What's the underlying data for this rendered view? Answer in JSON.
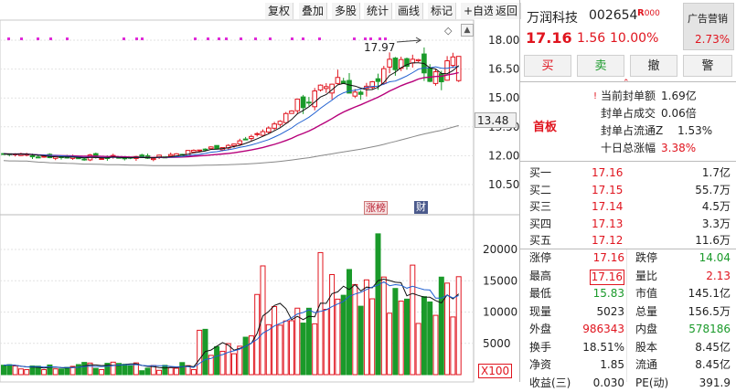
{
  "toolbar": [
    "复权",
    "叠加",
    "多股",
    "统计",
    "画线",
    "标记",
    "+自选",
    "返回"
  ],
  "stock": {
    "name": "万润科技",
    "code": "002654",
    "badge": "R",
    "badge2": "000",
    "price": "17.16",
    "change": "1.56",
    "pct": "10.00%",
    "ad_label": "广告营销",
    "ad_pct": "2.73%"
  },
  "actions": {
    "buy": "买",
    "sell": "卖",
    "cancel": "撤",
    "alert": "警"
  },
  "limit": {
    "label": "首板",
    "rows": [
      {
        "k": "当前封单额",
        "v": "1.69亿"
      },
      {
        "k": "封单占成交",
        "v": "0.06倍"
      },
      {
        "k": "封单占流通Z",
        "v": "1.53%"
      },
      {
        "k": "十日总涨幅",
        "v": "3.38%"
      }
    ]
  },
  "bids": [
    {
      "label": "买一",
      "price": "17.16",
      "vol": "1.7亿"
    },
    {
      "label": "买二",
      "price": "17.15",
      "vol": "55.7万"
    },
    {
      "label": "买三",
      "price": "17.14",
      "vol": "4.5万"
    },
    {
      "label": "买四",
      "price": "17.13",
      "vol": "3.3万"
    },
    {
      "label": "买五",
      "price": "17.12",
      "vol": "11.6万"
    }
  ],
  "stats": [
    {
      "k1": "涨停",
      "v1": "17.16",
      "k2": "跌停",
      "v2": "14.04"
    },
    {
      "k1": "最高",
      "v1": "17.16",
      "k2": "量比",
      "v2": "2.13"
    },
    {
      "k1": "最低",
      "v1": "15.83",
      "k2": "市值",
      "v2": "145.1亿"
    },
    {
      "k1": "现量",
      "v1": "5023",
      "k2": "总量",
      "v2": "156.5万"
    },
    {
      "k1": "外盘",
      "v1": "986343",
      "k2": "内盘",
      "v2": "578186"
    },
    {
      "k1": "换手",
      "v1": "18.51%",
      "k2": "股本",
      "v2": "8.45亿"
    },
    {
      "k1": "净资",
      "v1": "1.85",
      "k2": "流通",
      "v2": "8.45亿"
    },
    {
      "k1": "收益(三)",
      "v1": "0.030",
      "k2": "PE(动)",
      "v2": "391.9"
    }
  ],
  "chart": {
    "price_ticks": [
      "18.00",
      "16.50",
      "15.00",
      "13.50",
      "12.00",
      "10.50"
    ],
    "current_label": "13.48",
    "high_label": "17.97",
    "vol_ticks": [
      "20000",
      "15000",
      "10000",
      "5000"
    ],
    "vol_unit": "X100",
    "tag_zb": "涨榜",
    "tag_cai": "财"
  },
  "colors": {
    "up": "#e0141e",
    "down": "#1a9a2a",
    "ma5": "#111111",
    "ma10": "#1f5fd0",
    "ma20": "#b7007a",
    "ma60": "#888888",
    "dots": "#e02bd8"
  }
}
